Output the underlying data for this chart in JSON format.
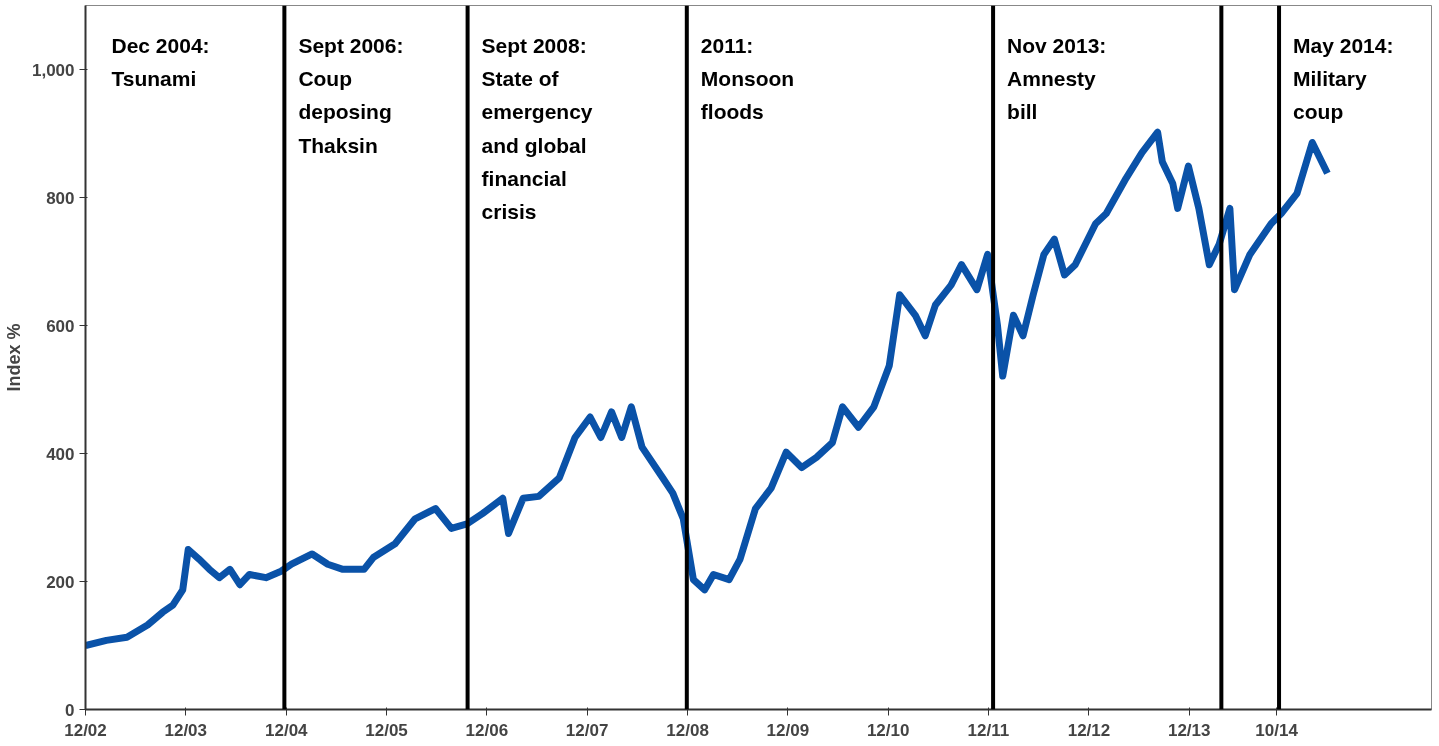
{
  "chart_data": {
    "type": "line",
    "ylabel": "Index %",
    "xlim": [
      "2002-12-01",
      "2016-05-01"
    ],
    "ylim": [
      0,
      1100
    ],
    "xticks": [
      {
        "value": "2002-12-01",
        "label": "12/02"
      },
      {
        "value": "2003-12-01",
        "label": "12/03"
      },
      {
        "value": "2004-12-01",
        "label": "12/04"
      },
      {
        "value": "2005-12-01",
        "label": "12/05"
      },
      {
        "value": "2006-12-01",
        "label": "12/06"
      },
      {
        "value": "2007-12-01",
        "label": "12/07"
      },
      {
        "value": "2008-12-01",
        "label": "12/08"
      },
      {
        "value": "2009-12-01",
        "label": "12/09"
      },
      {
        "value": "2010-12-01",
        "label": "12/10"
      },
      {
        "value": "2011-12-01",
        "label": "12/11"
      },
      {
        "value": "2012-12-01",
        "label": "12/12"
      },
      {
        "value": "2013-12-01",
        "label": "12/13"
      },
      {
        "value": "2014-10-15",
        "label": "10/14"
      }
    ],
    "yticks": [
      0,
      200,
      400,
      600,
      800,
      {
        "value": 1000,
        "label": "1,000"
      }
    ],
    "grid": false,
    "x": [
      "2002-12-01",
      "2003-02-15",
      "2003-05-01",
      "2003-07-15",
      "2003-09-08",
      "2003-10-15",
      "2003-11-20",
      "2003-12-10",
      "2004-01-18",
      "2004-02-25",
      "2004-04-01",
      "2004-05-10",
      "2004-06-15",
      "2004-07-20",
      "2004-09-18",
      "2004-11-12",
      "2004-12-20",
      "2005-03-05",
      "2005-05-01",
      "2005-06-25",
      "2005-09-10",
      "2005-10-15",
      "2006-01-01",
      "2006-03-15",
      "2006-05-28",
      "2006-07-25",
      "2006-09-20",
      "2006-11-15",
      "2007-01-28",
      "2007-02-18",
      "2007-04-12",
      "2007-06-08",
      "2007-08-22",
      "2007-10-18",
      "2007-12-12",
      "2008-01-20",
      "2008-02-28",
      "2008-04-05",
      "2008-05-10",
      "2008-06-18",
      "2008-09-01",
      "2008-10-08",
      "2008-11-15",
      "2008-12-22",
      "2009-02-01",
      "2009-03-05",
      "2009-05-01",
      "2009-06-10",
      "2009-08-05",
      "2009-10-01",
      "2009-11-25",
      "2010-01-20",
      "2010-03-15",
      "2010-05-12",
      "2010-06-18",
      "2010-08-15",
      "2010-10-10",
      "2010-12-05",
      "2011-01-12",
      "2011-03-10",
      "2011-04-15",
      "2011-05-22",
      "2011-07-18",
      "2011-08-25",
      "2011-10-20",
      "2011-11-28",
      "2012-01-03",
      "2012-01-22",
      "2012-03-01",
      "2012-04-05",
      "2012-05-12",
      "2012-06-20",
      "2012-07-28",
      "2012-09-03",
      "2012-10-12",
      "2012-11-18",
      "2012-12-25",
      "2013-02-02",
      "2013-04-15",
      "2013-06-12",
      "2013-08-08",
      "2013-08-25",
      "2013-10-02",
      "2013-10-20",
      "2013-11-28",
      "2014-01-05",
      "2014-02-12",
      "2014-03-20",
      "2014-04-28",
      "2014-05-15",
      "2014-07-10",
      "2014-09-25",
      "2014-11-01",
      "2014-12-28",
      "2015-02-22",
      "2015-04-18"
    ],
    "series": [
      {
        "color": "#0a52a8",
        "values": [
          100,
          108,
          113,
          132,
          152,
          163,
          187,
          250,
          235,
          219,
          206,
          219,
          195,
          211,
          206,
          216,
          227,
          243,
          227,
          219,
          219,
          238,
          259,
          298,
          314,
          283,
          290,
          306,
          330,
          275,
          330,
          333,
          362,
          425,
          457,
          425,
          465,
          425,
          473,
          410,
          362,
          338,
          298,
          203,
          187,
          211,
          203,
          235,
          314,
          346,
          402,
          378,
          394,
          417,
          473,
          441,
          473,
          537,
          648,
          616,
          584,
          632,
          663,
          695,
          656,
          711,
          600,
          521,
          616,
          584,
          648,
          711,
          735,
          679,
          695,
          727,
          759,
          775,
          830,
          870,
          902,
          856,
          822,
          783,
          849,
          783,
          695,
          727,
          783,
          656,
          711,
          759,
          775,
          806,
          886,
          838
        ]
      }
    ],
    "ref_lines": [
      {
        "axis": "x",
        "value": "2004-11-24",
        "color": "#000000"
      },
      {
        "axis": "x",
        "value": "2006-09-22",
        "color": "#000000"
      },
      {
        "axis": "x",
        "value": "2008-11-28",
        "color": "#000000"
      },
      {
        "axis": "x",
        "value": "2011-12-18",
        "color": "#000000"
      },
      {
        "axis": "x",
        "value": "2014-03-28",
        "color": "#000000"
      },
      {
        "axis": "x",
        "value": "2014-10-24",
        "color": "#000000"
      }
    ],
    "annotations": [
      "Dec 2004:\nTsunami",
      "Sept 2006:\nCoup\ndeposing\nThaksin",
      "Sept 2008:\nState of\nemergency\nand global\nfinancial\ncrisis",
      "2011:\nMonsoon\nfloods",
      "Nov 2013:\nAmnesty\nbill",
      "May 2014:\nMilitary\ncoup"
    ]
  }
}
